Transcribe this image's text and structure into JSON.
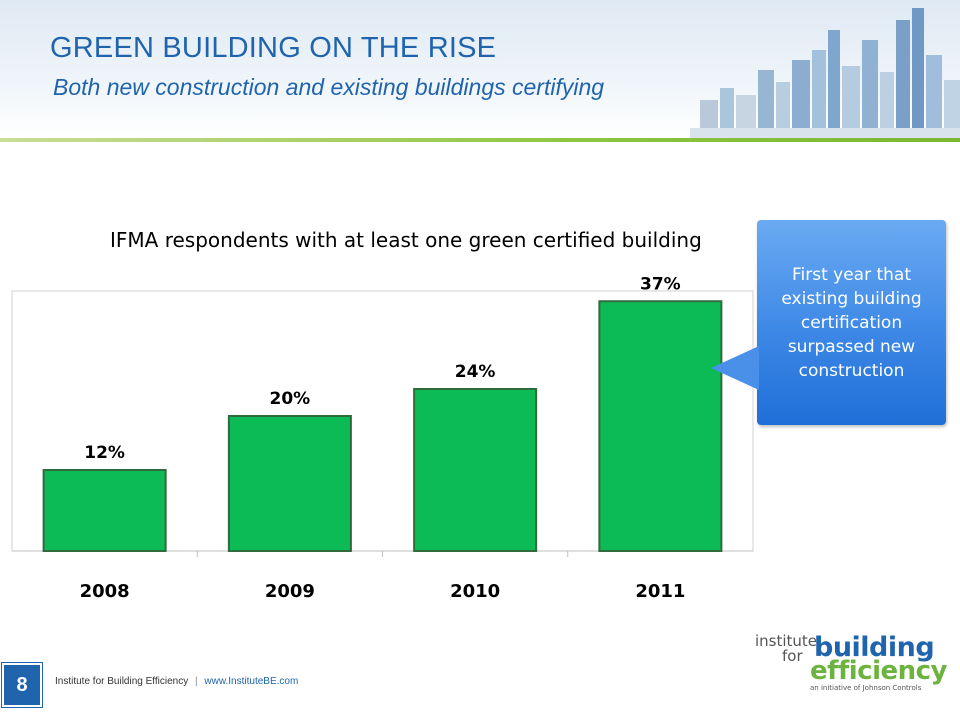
{
  "header": {
    "title": "GREEN BUILDING ON THE RISE",
    "subtitle": "Both new construction and existing buildings certifying"
  },
  "chart_data": {
    "type": "bar",
    "title": "IFMA respondents with at least one green certified building",
    "categories": [
      "2008",
      "2009",
      "2010",
      "2011"
    ],
    "values": [
      12,
      20,
      24,
      37
    ],
    "labels": [
      "12%",
      "20%",
      "24%",
      "37%"
    ],
    "unit": "%",
    "ylim": [
      0,
      40
    ],
    "grid": false,
    "bar_color": "#0dbb56"
  },
  "callout": {
    "text": "First year that existing building certification surpassed new construction",
    "color": "#3d88e6"
  },
  "footer": {
    "page_number": "8",
    "org": "Institute for Building Efficiency",
    "separator": "|",
    "url": "www.InstituteBE.com"
  },
  "logo": {
    "line1": "institute",
    "line2": "for",
    "word1": "building",
    "word2": "efficiency",
    "tagline": "an initiative of Johnson Controls"
  },
  "colors": {
    "title": "#1f64ad",
    "accent_green": "#8dc63f",
    "bar": "#0dbb56",
    "callout": "#3d88e6"
  }
}
